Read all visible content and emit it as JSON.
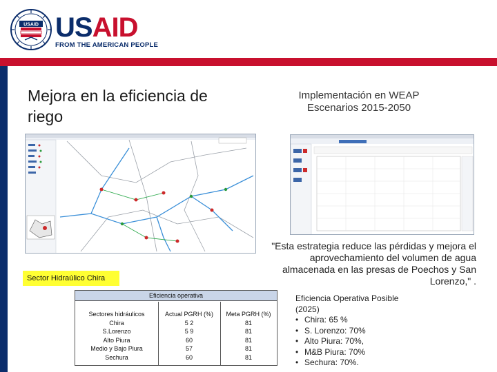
{
  "logo": {
    "seal_text": "USAID",
    "wordmark_us": "US",
    "wordmark_aid": "AID",
    "tagline": "FROM THE AMERICAN PEOPLE"
  },
  "slide": {
    "title": "Mejora en la eficiencia de riego",
    "weap_title_line1": "Implementación en WEAP",
    "weap_title_line2": "Escenarios 2015-2050",
    "sector_label": "Sector Hidraúlico Chira",
    "quote": "\"Esta estrategia reduce las pérdidas y mejora el aprovechamiento del volumen de agua almacenada en las presas de Poechos y San Lorenzo,\" ."
  },
  "table": {
    "header": "Eficiencia operativa",
    "columns": [
      "Sectores hidráulicos",
      "Actual PGRH (%)",
      "Meta PGRH (%)"
    ],
    "rows": [
      [
        "Chira",
        "5 2",
        "81"
      ],
      [
        "S.Lorenzo",
        "5 9",
        "81"
      ],
      [
        "Alto Piura",
        "60",
        "81"
      ],
      [
        "Medio y Bajo Piura",
        "57",
        "81"
      ],
      [
        "Sechura",
        "60",
        "81"
      ]
    ]
  },
  "eficiencia_posible": {
    "title": "Eficiencia Operativa Posible",
    "year": "(2025)",
    "items": [
      "Chira: 65 %",
      "S. Lorenzo: 70%",
      "Alto Piura: 70%,",
      "M&B Piura: 70%",
      "Sechura: 70%."
    ]
  },
  "colors": {
    "usaid_blue": "#0b2d6b",
    "usaid_red": "#c8102e",
    "label_yellow": "#ffff33",
    "table_header": "#c9d5e8"
  }
}
